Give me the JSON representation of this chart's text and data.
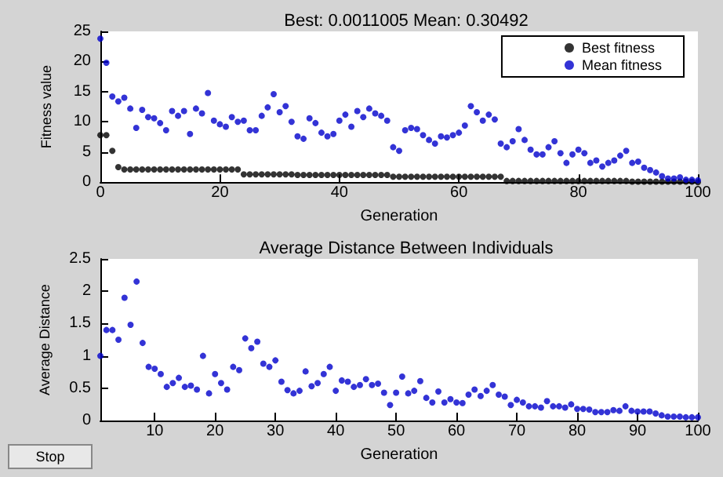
{
  "chart_data": [
    {
      "type": "scatter",
      "title": "Best: 0.0011005 Mean: 0.30492",
      "xlabel": "Generation",
      "ylabel": "Fitness value",
      "x": [
        0,
        1,
        2,
        3,
        4,
        5,
        6,
        7,
        8,
        9,
        10,
        11,
        12,
        13,
        14,
        15,
        16,
        17,
        18,
        19,
        20,
        21,
        22,
        23,
        24,
        25,
        26,
        27,
        28,
        29,
        30,
        31,
        32,
        33,
        34,
        35,
        36,
        37,
        38,
        39,
        40,
        41,
        42,
        43,
        44,
        45,
        46,
        47,
        48,
        49,
        50,
        51,
        52,
        53,
        54,
        55,
        56,
        57,
        58,
        59,
        60,
        61,
        62,
        63,
        64,
        65,
        66,
        67,
        68,
        69,
        70,
        71,
        72,
        73,
        74,
        75,
        76,
        77,
        78,
        79,
        80,
        81,
        82,
        83,
        84,
        85,
        86,
        87,
        88,
        89,
        90,
        91,
        92,
        93,
        94,
        95,
        96,
        97,
        98,
        99,
        100
      ],
      "series": [
        {
          "name": "Best fitness",
          "color": "#000000",
          "values": [
            7.8,
            7.8,
            5.2,
            2.5,
            2.1,
            2.1,
            2.1,
            2.1,
            2.1,
            2.1,
            2.1,
            2.1,
            2.1,
            2.1,
            2.1,
            2.1,
            2.1,
            2.1,
            2.1,
            2.1,
            2.1,
            2.1,
            2.1,
            2.1,
            1.3,
            1.3,
            1.3,
            1.3,
            1.3,
            1.3,
            1.3,
            1.3,
            1.3,
            1.2,
            1.2,
            1.2,
            1.2,
            1.2,
            1.2,
            1.2,
            1.2,
            1.2,
            1.2,
            1.2,
            1.2,
            1.2,
            1.2,
            1.2,
            1.2,
            0.9,
            0.9,
            0.9,
            0.9,
            0.9,
            0.9,
            0.9,
            0.9,
            0.9,
            0.9,
            0.9,
            0.9,
            0.9,
            0.9,
            0.9,
            0.9,
            0.9,
            0.9,
            0.9,
            0.2,
            0.2,
            0.2,
            0.2,
            0.2,
            0.2,
            0.2,
            0.2,
            0.2,
            0.2,
            0.2,
            0.2,
            0.2,
            0.2,
            0.2,
            0.2,
            0.2,
            0.2,
            0.2,
            0.2,
            0.2,
            0.1,
            0.1,
            0.1,
            0.1,
            0.1,
            0.1,
            0.1,
            0.1,
            0.1,
            0.1,
            0.1,
            0
          ]
        },
        {
          "name": "Mean fitness",
          "color": "#0000cc",
          "values": [
            23.8,
            19.8,
            14.2,
            13.4,
            14,
            12.2,
            9,
            12,
            10.8,
            10.6,
            9.8,
            8.6,
            11.8,
            11,
            11.8,
            8,
            12.2,
            11.4,
            14.8,
            10.2,
            9.6,
            9.2,
            10.8,
            10,
            10.2,
            8.6,
            8.6,
            11,
            12.4,
            14.6,
            11.6,
            12.6,
            10,
            7.6,
            7.2,
            10.6,
            9.8,
            8.2,
            7.6,
            8,
            10.2,
            11.2,
            9.2,
            11.8,
            10.8,
            12.2,
            11.4,
            11,
            10.2,
            5.8,
            5.2,
            8.6,
            9,
            8.8,
            7.8,
            7,
            6.4,
            7.6,
            7.4,
            7.8,
            8.2,
            9.4,
            12.6,
            11.6,
            10.2,
            11.2,
            10.4,
            6.4,
            5.8,
            6.8,
            8.8,
            7,
            5.4,
            4.6,
            4.6,
            5.8,
            6.8,
            4.8,
            3.2,
            4.6,
            5.4,
            4.8,
            3.2,
            3.6,
            2.6,
            3.2,
            3.6,
            4.4,
            5.2,
            3.2,
            3.4,
            2.4,
            2,
            1.6,
            1,
            0.6,
            0.6,
            0.8,
            0.4,
            0.4,
            0.3
          ]
        }
      ],
      "xlim": [
        0,
        100
      ],
      "xticks": [
        0,
        20,
        40,
        60,
        80,
        100
      ],
      "ylim": [
        0,
        25
      ],
      "yticks": [
        0,
        5,
        10,
        15,
        20,
        25
      ],
      "legend": "top right",
      "marker": "circle",
      "grid": false
    },
    {
      "type": "scatter",
      "title": "Average Distance Between Individuals",
      "xlabel": "Generation",
      "ylabel": "Average Distance",
      "annotations": [
        "Stop"
      ],
      "x": [
        1,
        2,
        3,
        4,
        5,
        6,
        7,
        8,
        9,
        10,
        11,
        12,
        13,
        14,
        15,
        16,
        17,
        18,
        19,
        20,
        21,
        22,
        23,
        24,
        25,
        26,
        27,
        28,
        29,
        30,
        31,
        32,
        33,
        34,
        35,
        36,
        37,
        38,
        39,
        40,
        41,
        42,
        43,
        44,
        45,
        46,
        47,
        48,
        49,
        50,
        51,
        52,
        53,
        54,
        55,
        56,
        57,
        58,
        59,
        60,
        61,
        62,
        63,
        64,
        65,
        66,
        67,
        68,
        69,
        70,
        71,
        72,
        73,
        74,
        75,
        76,
        77,
        78,
        79,
        80,
        81,
        82,
        83,
        84,
        85,
        86,
        87,
        88,
        89,
        90,
        91,
        92,
        93,
        94,
        95,
        96,
        97,
        98,
        99,
        100
      ],
      "series": [
        {
          "color": "#0000cc",
          "values": [
            1.0,
            1.4,
            1.4,
            1.25,
            1.9,
            1.48,
            2.15,
            1.2,
            0.83,
            0.8,
            0.72,
            0.52,
            0.58,
            0.66,
            0.52,
            0.54,
            0.48,
            1.0,
            0.42,
            0.72,
            0.58,
            0.48,
            0.83,
            0.78,
            1.27,
            1.12,
            1.22,
            0.88,
            0.83,
            0.93,
            0.6,
            0.47,
            0.42,
            0.46,
            0.76,
            0.53,
            0.58,
            0.72,
            0.83,
            0.46,
            0.62,
            0.6,
            0.52,
            0.55,
            0.64,
            0.55,
            0.57,
            0.43,
            0.24,
            0.43,
            0.68,
            0.42,
            0.46,
            0.61,
            0.35,
            0.28,
            0.45,
            0.28,
            0.33,
            0.28,
            0.27,
            0.4,
            0.48,
            0.38,
            0.46,
            0.55,
            0.4,
            0.37,
            0.24,
            0.32,
            0.28,
            0.22,
            0.22,
            0.2,
            0.3,
            0.22,
            0.22,
            0.2,
            0.25,
            0.18,
            0.18,
            0.17,
            0.13,
            0.13,
            0.13,
            0.16,
            0.15,
            0.22,
            0.15,
            0.14,
            0.14,
            0.14,
            0.11,
            0.08,
            0.06,
            0.06,
            0.06,
            0.05,
            0.05,
            0.05
          ]
        }
      ],
      "xlim": [
        1,
        100
      ],
      "xticks": [
        10,
        20,
        30,
        40,
        50,
        60,
        70,
        80,
        90,
        100
      ],
      "ylim": [
        0,
        2.5
      ],
      "yticks": [
        0,
        0.5,
        1,
        1.5,
        2,
        2.5
      ],
      "marker": "circle",
      "grid": false
    }
  ]
}
